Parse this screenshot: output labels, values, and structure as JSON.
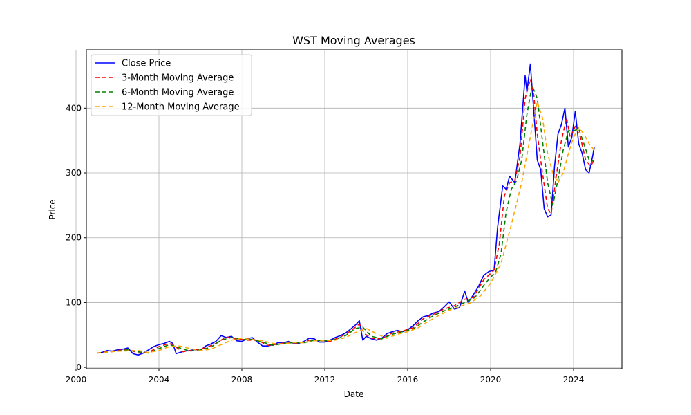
{
  "chart_data": {
    "type": "line",
    "title": "WST Moving Averages",
    "xlabel": "Date",
    "ylabel": "Price",
    "xlim": [
      "2000-07-01",
      "2026-05-01"
    ],
    "ylim": [
      -2,
      490
    ],
    "x_ticks": [
      "2000",
      "2004",
      "2008",
      "2012",
      "2016",
      "2020",
      "2024"
    ],
    "y_ticks": [
      0,
      100,
      200,
      300,
      400
    ],
    "grid": true,
    "legend_position": "upper-left",
    "series": [
      {
        "name": "Close Price",
        "color": "#0000ff",
        "dash": "solid",
        "points": [
          [
            "2001-01-01",
            22
          ],
          [
            "2001-04-01",
            23
          ],
          [
            "2001-07-01",
            26
          ],
          [
            "2001-10-01",
            25
          ],
          [
            "2002-01-01",
            27
          ],
          [
            "2002-04-01",
            28
          ],
          [
            "2002-07-01",
            30
          ],
          [
            "2002-10-01",
            21
          ],
          [
            "2003-01-01",
            19
          ],
          [
            "2003-04-01",
            22
          ],
          [
            "2003-07-01",
            27
          ],
          [
            "2003-10-01",
            32
          ],
          [
            "2004-01-01",
            35
          ],
          [
            "2004-04-01",
            37
          ],
          [
            "2004-07-01",
            40
          ],
          [
            "2004-09-01",
            37
          ],
          [
            "2004-11-01",
            21
          ],
          [
            "2005-01-01",
            23
          ],
          [
            "2005-04-01",
            25
          ],
          [
            "2005-07-01",
            26
          ],
          [
            "2005-10-01",
            28
          ],
          [
            "2006-01-01",
            26
          ],
          [
            "2006-04-01",
            33
          ],
          [
            "2006-07-01",
            36
          ],
          [
            "2006-10-01",
            40
          ],
          [
            "2007-01-01",
            49
          ],
          [
            "2007-04-01",
            46
          ],
          [
            "2007-07-01",
            48
          ],
          [
            "2007-10-01",
            41
          ],
          [
            "2008-01-01",
            40
          ],
          [
            "2008-04-01",
            44
          ],
          [
            "2008-07-01",
            46
          ],
          [
            "2008-10-01",
            39
          ],
          [
            "2009-01-01",
            33
          ],
          [
            "2009-04-01",
            33
          ],
          [
            "2009-07-01",
            35
          ],
          [
            "2009-10-01",
            38
          ],
          [
            "2010-01-01",
            38
          ],
          [
            "2010-04-01",
            40
          ],
          [
            "2010-07-01",
            37
          ],
          [
            "2010-10-01",
            37
          ],
          [
            "2011-01-01",
            40
          ],
          [
            "2011-04-01",
            45
          ],
          [
            "2011-07-01",
            44
          ],
          [
            "2011-10-01",
            39
          ],
          [
            "2012-01-01",
            39
          ],
          [
            "2012-04-01",
            42
          ],
          [
            "2012-07-01",
            46
          ],
          [
            "2012-10-01",
            49
          ],
          [
            "2013-01-01",
            53
          ],
          [
            "2013-04-01",
            59
          ],
          [
            "2013-07-01",
            66
          ],
          [
            "2013-09-01",
            72
          ],
          [
            "2013-11-01",
            42
          ],
          [
            "2014-01-01",
            48
          ],
          [
            "2014-04-01",
            44
          ],
          [
            "2014-07-01",
            42
          ],
          [
            "2014-10-01",
            45
          ],
          [
            "2015-01-01",
            52
          ],
          [
            "2015-04-01",
            55
          ],
          [
            "2015-07-01",
            57
          ],
          [
            "2015-10-01",
            55
          ],
          [
            "2016-01-01",
            58
          ],
          [
            "2016-04-01",
            64
          ],
          [
            "2016-07-01",
            72
          ],
          [
            "2016-10-01",
            78
          ],
          [
            "2017-01-01",
            80
          ],
          [
            "2017-04-01",
            84
          ],
          [
            "2017-07-01",
            86
          ],
          [
            "2017-10-01",
            93
          ],
          [
            "2018-01-01",
            101
          ],
          [
            "2018-04-01",
            90
          ],
          [
            "2018-07-01",
            92
          ],
          [
            "2018-10-01",
            118
          ],
          [
            "2018-12-01",
            100
          ],
          [
            "2019-03-01",
            112
          ],
          [
            "2019-06-01",
            125
          ],
          [
            "2019-09-01",
            142
          ],
          [
            "2019-12-01",
            148
          ],
          [
            "2020-03-01",
            150
          ],
          [
            "2020-05-01",
            215
          ],
          [
            "2020-08-01",
            280
          ],
          [
            "2020-10-01",
            275
          ],
          [
            "2020-12-01",
            295
          ],
          [
            "2021-03-01",
            285
          ],
          [
            "2021-06-01",
            345
          ],
          [
            "2021-09-01",
            450
          ],
          [
            "2021-10-01",
            425
          ],
          [
            "2021-12-01",
            468
          ],
          [
            "2022-02-01",
            395
          ],
          [
            "2022-04-01",
            320
          ],
          [
            "2022-06-01",
            305
          ],
          [
            "2022-08-01",
            245
          ],
          [
            "2022-10-01",
            232
          ],
          [
            "2022-12-01",
            235
          ],
          [
            "2023-02-01",
            310
          ],
          [
            "2023-04-01",
            360
          ],
          [
            "2023-06-01",
            375
          ],
          [
            "2023-08-01",
            400
          ],
          [
            "2023-10-01",
            340
          ],
          [
            "2023-12-01",
            355
          ],
          [
            "2024-02-01",
            395
          ],
          [
            "2024-04-01",
            345
          ],
          [
            "2024-06-01",
            330
          ],
          [
            "2024-08-01",
            305
          ],
          [
            "2024-10-01",
            300
          ],
          [
            "2024-12-01",
            325
          ],
          [
            "2025-01-01",
            340
          ]
        ]
      },
      {
        "name": "3-Month Moving Average",
        "color": "#ff0000",
        "dash": "6,4",
        "points": [
          [
            "2001-01-01",
            22
          ],
          [
            "2001-07-01",
            24
          ],
          [
            "2002-01-01",
            26
          ],
          [
            "2002-07-01",
            28
          ],
          [
            "2003-01-01",
            22
          ],
          [
            "2003-07-01",
            23
          ],
          [
            "2004-01-01",
            32
          ],
          [
            "2004-07-01",
            37
          ],
          [
            "2004-11-01",
            31
          ],
          [
            "2005-03-01",
            24
          ],
          [
            "2005-10-01",
            27
          ],
          [
            "2006-04-01",
            30
          ],
          [
            "2006-10-01",
            37
          ],
          [
            "2007-04-01",
            47
          ],
          [
            "2007-10-01",
            44
          ],
          [
            "2008-04-01",
            42
          ],
          [
            "2008-10-01",
            42
          ],
          [
            "2009-04-01",
            34
          ],
          [
            "2009-10-01",
            36
          ],
          [
            "2010-04-01",
            39
          ],
          [
            "2010-10-01",
            37
          ],
          [
            "2011-04-01",
            42
          ],
          [
            "2011-10-01",
            42
          ],
          [
            "2012-04-01",
            40
          ],
          [
            "2012-10-01",
            47
          ],
          [
            "2013-04-01",
            56
          ],
          [
            "2013-09-01",
            67
          ],
          [
            "2013-12-01",
            52
          ],
          [
            "2014-04-01",
            45
          ],
          [
            "2014-10-01",
            44
          ],
          [
            "2015-04-01",
            53
          ],
          [
            "2015-10-01",
            56
          ],
          [
            "2016-04-01",
            61
          ],
          [
            "2016-10-01",
            75
          ],
          [
            "2017-04-01",
            82
          ],
          [
            "2017-10-01",
            90
          ],
          [
            "2018-04-01",
            95
          ],
          [
            "2018-10-01",
            105
          ],
          [
            "2019-03-01",
            108
          ],
          [
            "2019-09-01",
            135
          ],
          [
            "2020-03-01",
            150
          ],
          [
            "2020-06-01",
            190
          ],
          [
            "2020-09-01",
            265
          ],
          [
            "2020-12-01",
            285
          ],
          [
            "2021-03-01",
            288
          ],
          [
            "2021-06-01",
            325
          ],
          [
            "2021-09-01",
            415
          ],
          [
            "2021-12-01",
            445
          ],
          [
            "2022-02-01",
            420
          ],
          [
            "2022-04-01",
            360
          ],
          [
            "2022-07-01",
            300
          ],
          [
            "2022-10-01",
            245
          ],
          [
            "2022-12-01",
            237
          ],
          [
            "2023-03-01",
            295
          ],
          [
            "2023-06-01",
            350
          ],
          [
            "2023-09-01",
            385
          ],
          [
            "2023-11-01",
            355
          ],
          [
            "2024-02-01",
            372
          ],
          [
            "2024-05-01",
            355
          ],
          [
            "2024-08-01",
            320
          ],
          [
            "2024-11-01",
            310
          ],
          [
            "2025-01-01",
            322
          ]
        ]
      },
      {
        "name": "6-Month Moving Average",
        "color": "#008000",
        "dash": "6,4",
        "points": [
          [
            "2001-01-01",
            22
          ],
          [
            "2002-01-01",
            25
          ],
          [
            "2002-07-01",
            27
          ],
          [
            "2003-01-01",
            24
          ],
          [
            "2003-07-01",
            22
          ],
          [
            "2004-01-01",
            29
          ],
          [
            "2004-07-01",
            35
          ],
          [
            "2005-01-01",
            30
          ],
          [
            "2005-07-01",
            25
          ],
          [
            "2006-01-01",
            27
          ],
          [
            "2006-07-01",
            31
          ],
          [
            "2007-01-01",
            42
          ],
          [
            "2007-07-01",
            46
          ],
          [
            "2008-01-01",
            43
          ],
          [
            "2008-07-01",
            43
          ],
          [
            "2009-01-01",
            39
          ],
          [
            "2009-07-01",
            34
          ],
          [
            "2010-01-01",
            37
          ],
          [
            "2010-07-01",
            38
          ],
          [
            "2011-01-01",
            38
          ],
          [
            "2011-07-01",
            42
          ],
          [
            "2012-01-01",
            41
          ],
          [
            "2012-07-01",
            43
          ],
          [
            "2013-01-01",
            49
          ],
          [
            "2013-07-01",
            60
          ],
          [
            "2013-11-01",
            62
          ],
          [
            "2014-04-01",
            48
          ],
          [
            "2014-10-01",
            44
          ],
          [
            "2015-04-01",
            51
          ],
          [
            "2015-10-01",
            55
          ],
          [
            "2016-04-01",
            59
          ],
          [
            "2016-10-01",
            70
          ],
          [
            "2017-04-01",
            80
          ],
          [
            "2017-10-01",
            87
          ],
          [
            "2018-04-01",
            93
          ],
          [
            "2018-10-01",
            100
          ],
          [
            "2019-04-01",
            108
          ],
          [
            "2019-10-01",
            130
          ],
          [
            "2020-04-01",
            148
          ],
          [
            "2020-07-01",
            175
          ],
          [
            "2020-10-01",
            240
          ],
          [
            "2021-01-01",
            275
          ],
          [
            "2021-04-01",
            288
          ],
          [
            "2021-07-01",
            320
          ],
          [
            "2021-10-01",
            390
          ],
          [
            "2022-01-01",
            435
          ],
          [
            "2022-04-01",
            415
          ],
          [
            "2022-07-01",
            350
          ],
          [
            "2022-10-01",
            285
          ],
          [
            "2023-01-01",
            250
          ],
          [
            "2023-04-01",
            290
          ],
          [
            "2023-07-01",
            335
          ],
          [
            "2023-10-01",
            365
          ],
          [
            "2024-01-01",
            365
          ],
          [
            "2024-04-01",
            368
          ],
          [
            "2024-07-01",
            345
          ],
          [
            "2024-10-01",
            320
          ],
          [
            "2025-01-01",
            318
          ]
        ]
      },
      {
        "name": "12-Month Moving Average",
        "color": "#ffa500",
        "dash": "6,4",
        "points": [
          [
            "2001-01-01",
            22
          ],
          [
            "2002-01-01",
            25
          ],
          [
            "2003-01-01",
            26
          ],
          [
            "2003-07-01",
            23
          ],
          [
            "2004-01-01",
            26
          ],
          [
            "2004-07-01",
            32
          ],
          [
            "2005-01-01",
            33
          ],
          [
            "2005-07-01",
            29
          ],
          [
            "2006-01-01",
            26
          ],
          [
            "2006-07-01",
            28
          ],
          [
            "2007-01-01",
            35
          ],
          [
            "2007-07-01",
            42
          ],
          [
            "2008-01-01",
            45
          ],
          [
            "2008-07-01",
            43
          ],
          [
            "2009-01-01",
            41
          ],
          [
            "2009-07-01",
            37
          ],
          [
            "2010-01-01",
            36
          ],
          [
            "2010-07-01",
            38
          ],
          [
            "2011-01-01",
            38
          ],
          [
            "2011-07-01",
            41
          ],
          [
            "2012-01-01",
            41
          ],
          [
            "2012-07-01",
            42
          ],
          [
            "2013-01-01",
            46
          ],
          [
            "2013-07-01",
            54
          ],
          [
            "2014-01-01",
            60
          ],
          [
            "2014-07-01",
            52
          ],
          [
            "2015-01-01",
            45
          ],
          [
            "2015-07-01",
            51
          ],
          [
            "2016-01-01",
            55
          ],
          [
            "2016-07-01",
            61
          ],
          [
            "2017-01-01",
            71
          ],
          [
            "2017-07-01",
            80
          ],
          [
            "2018-01-01",
            88
          ],
          [
            "2018-07-01",
            94
          ],
          [
            "2019-01-01",
            99
          ],
          [
            "2019-07-01",
            110
          ],
          [
            "2020-01-01",
            130
          ],
          [
            "2020-07-01",
            160
          ],
          [
            "2021-01-01",
            220
          ],
          [
            "2021-07-01",
            285
          ],
          [
            "2022-01-01",
            370
          ],
          [
            "2022-04-01",
            410
          ],
          [
            "2022-07-01",
            385
          ],
          [
            "2022-10-01",
            330
          ],
          [
            "2023-01-01",
            300
          ],
          [
            "2023-04-01",
            285
          ],
          [
            "2023-07-01",
            300
          ],
          [
            "2023-10-01",
            330
          ],
          [
            "2024-01-01",
            355
          ],
          [
            "2024-04-01",
            370
          ],
          [
            "2024-07-01",
            360
          ],
          [
            "2024-10-01",
            345
          ],
          [
            "2025-01-01",
            335
          ]
        ]
      }
    ]
  }
}
